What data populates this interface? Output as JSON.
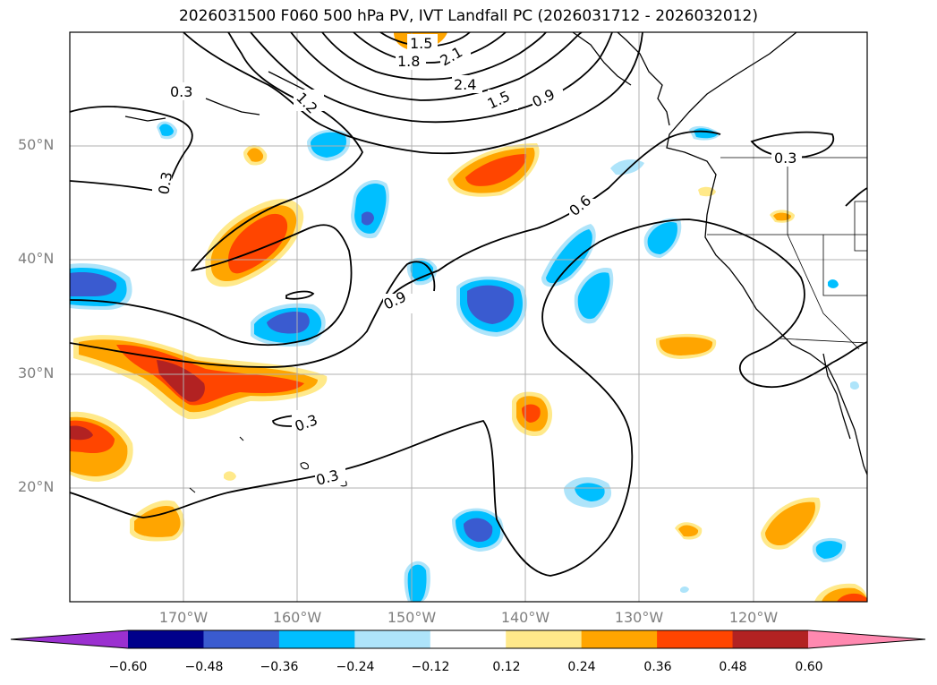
{
  "title": "2026031500 F060 500 hPa PV, IVT Landfall PC (2026031712 - 2026032012)",
  "lat_labels": [
    "50°N",
    "40°N",
    "30°N",
    "20°N"
  ],
  "lon_labels": [
    "170°W",
    "160°W",
    "150°W",
    "140°W",
    "130°W",
    "120°W"
  ],
  "colorbar": {
    "tick_labels": [
      "−0.60",
      "−0.48",
      "−0.36",
      "−0.24",
      "−0.12",
      "0.12",
      "0.24",
      "0.36",
      "0.48",
      "0.60"
    ],
    "colors": [
      "#9b30d0",
      "#00008b",
      "#3a5bd0",
      "#00bfff",
      "#aee4fa",
      "#ffffff",
      "#ffe98a",
      "#ffa500",
      "#ff4500",
      "#b22222",
      "#ff89b0"
    ]
  },
  "contour_labels": [
    "0.3",
    "0.3",
    "0.3",
    "0.3",
    "0.3",
    "0.6",
    "0.9",
    "0.9",
    "1.2",
    "1.5",
    "1.5",
    "1.8",
    "2.1",
    "2.4"
  ],
  "map_extent": {
    "lon_min": -180,
    "lon_max": -110,
    "lat_min": 10,
    "lat_max": 60
  }
}
